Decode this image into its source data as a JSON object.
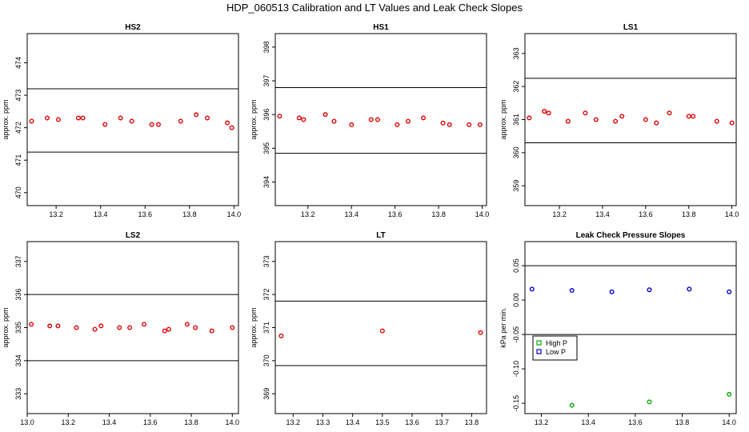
{
  "title": "HDP_060513  Calibration and LT Values and Leak Check Slopes",
  "chart_data": [
    {
      "type": "scatter",
      "title": "HS2",
      "ylabel": "approx. ppm",
      "xlim": [
        13.07,
        14.02
      ],
      "ylim": [
        469.6,
        474.9
      ],
      "xticks": [
        "13.2",
        "13.4",
        "13.6",
        "13.8",
        "14.0"
      ],
      "yticks": [
        "470",
        "471",
        "472",
        "473",
        "474"
      ],
      "hlines": [
        473.2,
        471.25
      ],
      "point_color": "#dd0000",
      "x": [
        13.09,
        13.16,
        13.21,
        13.3,
        13.32,
        13.42,
        13.49,
        13.54,
        13.63,
        13.66,
        13.76,
        13.83,
        13.88,
        13.97,
        13.99
      ],
      "y": [
        472.2,
        472.3,
        472.25,
        472.3,
        472.3,
        472.1,
        472.3,
        472.2,
        472.1,
        472.1,
        472.2,
        472.4,
        472.3,
        472.15,
        472.0
      ]
    },
    {
      "type": "scatter",
      "title": "HS1",
      "ylabel": "approx. ppm",
      "xlim": [
        13.05,
        14.02
      ],
      "ylim": [
        393.3,
        398.4
      ],
      "xticks": [
        "13.2",
        "13.4",
        "13.6",
        "13.8",
        "14.0"
      ],
      "yticks": [
        "394",
        "395",
        "396",
        "397",
        "398"
      ],
      "hlines": [
        396.8,
        394.85
      ],
      "point_color": "#dd0000",
      "x": [
        13.07,
        13.16,
        13.18,
        13.28,
        13.32,
        13.4,
        13.49,
        13.52,
        13.61,
        13.66,
        13.73,
        13.82,
        13.85,
        13.94,
        13.99
      ],
      "y": [
        395.95,
        395.9,
        395.85,
        396.0,
        395.8,
        395.7,
        395.85,
        395.85,
        395.7,
        395.8,
        395.9,
        395.75,
        395.7,
        395.7,
        395.7
      ]
    },
    {
      "type": "scatter",
      "title": "LS1",
      "ylabel": "approx. ppm",
      "xlim": [
        13.04,
        14.02
      ],
      "ylim": [
        358.4,
        363.6
      ],
      "xticks": [
        "13.2",
        "13.4",
        "13.6",
        "13.8",
        "14.0"
      ],
      "yticks": [
        "359",
        "360",
        "361",
        "362",
        "363"
      ],
      "hlines": [
        362.25,
        360.3
      ],
      "point_color": "#dd0000",
      "x": [
        13.06,
        13.13,
        13.15,
        13.24,
        13.32,
        13.37,
        13.46,
        13.49,
        13.6,
        13.65,
        13.71,
        13.8,
        13.82,
        13.93,
        14.0
      ],
      "y": [
        361.05,
        361.25,
        361.2,
        360.95,
        361.2,
        361.0,
        360.95,
        361.1,
        361.0,
        360.9,
        361.2,
        361.1,
        361.1,
        360.95,
        360.9
      ]
    },
    {
      "type": "scatter",
      "title": "LS2",
      "ylabel": "approx. ppm",
      "xlim": [
        13.0,
        14.03
      ],
      "ylim": [
        332.4,
        337.6
      ],
      "xticks": [
        "13.0",
        "13.2",
        "13.4",
        "13.6",
        "13.8",
        "14.0"
      ],
      "yticks": [
        "333",
        "334",
        "335",
        "336",
        "337"
      ],
      "hlines": [
        336.0,
        334.0
      ],
      "point_color": "#dd0000",
      "x": [
        13.02,
        13.11,
        13.15,
        13.24,
        13.33,
        13.36,
        13.45,
        13.5,
        13.57,
        13.67,
        13.69,
        13.78,
        13.82,
        13.9,
        14.0
      ],
      "y": [
        335.1,
        335.05,
        335.05,
        335.0,
        334.95,
        335.05,
        335.0,
        335.0,
        335.1,
        334.9,
        334.95,
        335.1,
        335.0,
        334.9,
        335.0
      ]
    },
    {
      "type": "scatter",
      "title": "LT",
      "ylabel": "approx. ppm",
      "xlim": [
        13.14,
        13.85
      ],
      "ylim": [
        368.4,
        373.6
      ],
      "xticks": [
        "13.2",
        "13.3",
        "13.4",
        "13.5",
        "13.6",
        "13.7",
        "13.8"
      ],
      "yticks": [
        "369",
        "370",
        "371",
        "372",
        "373"
      ],
      "hlines": [
        371.8,
        369.85
      ],
      "point_color": "#dd0000",
      "x": [
        13.16,
        13.5,
        13.83
      ],
      "y": [
        370.75,
        370.9,
        370.85
      ]
    },
    {
      "type": "scatter",
      "title": "Leak Check Pressure Slopes",
      "ylabel": "kPa per min.",
      "xlim": [
        13.13,
        14.03
      ],
      "ylim": [
        -0.165,
        0.085
      ],
      "xticks": [
        "13.2",
        "13.4",
        "13.6",
        "13.8",
        "14.0"
      ],
      "yticks": [
        "-0.15",
        "-0.10",
        "-0.05",
        "0.00",
        "0.05"
      ],
      "hlines": [
        0.05,
        -0.05
      ],
      "legend": {
        "position": "left",
        "entries": [
          {
            "label": "High P",
            "color": "#00aa00"
          },
          {
            "label": "Low P",
            "color": "#0000cc"
          }
        ]
      },
      "series": [
        {
          "name": "High P",
          "color": "#00aa00",
          "x": [
            13.33,
            13.66,
            14.0
          ],
          "y": [
            -0.153,
            -0.148,
            -0.137
          ]
        },
        {
          "name": "Low P",
          "color": "#0000cc",
          "x": [
            13.16,
            13.33,
            13.5,
            13.66,
            13.83,
            14.0
          ],
          "y": [
            0.016,
            0.014,
            0.012,
            0.015,
            0.016,
            0.012
          ]
        }
      ]
    }
  ]
}
